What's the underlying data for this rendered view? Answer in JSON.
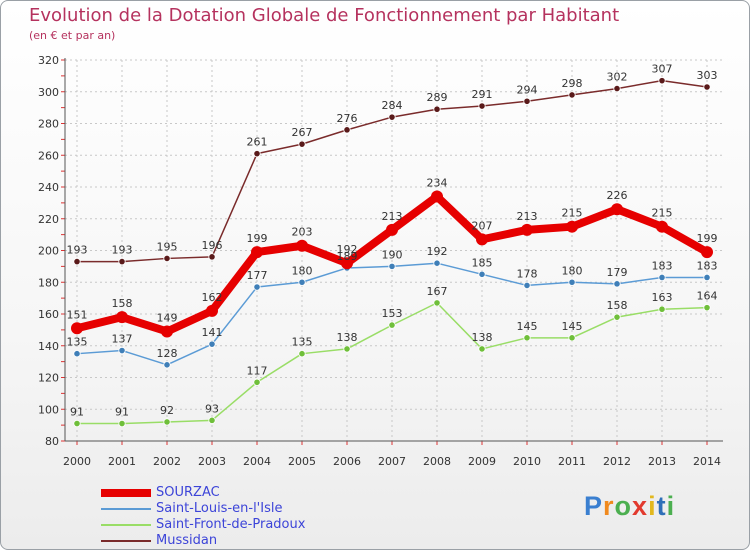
{
  "title": "Evolution de la Dotation Globale de Fonctionnement par Habitant",
  "subtitle": "(en € et par an)",
  "brand": "Proxiti",
  "chart_data": {
    "type": "line",
    "title": "Evolution de la Dotation Globale de Fonctionnement par Habitant",
    "ylabel": "(en € et par an)",
    "xlabel": "",
    "ylim": [
      80,
      320
    ],
    "y_ticks": [
      "80",
      "100",
      "120",
      "140",
      "160",
      "180",
      "200",
      "220",
      "240",
      "260",
      "280",
      "300",
      "320"
    ],
    "categories": [
      "2000",
      "2001",
      "2002",
      "2003",
      "2004",
      "2005",
      "2006",
      "2007",
      "2008",
      "2009",
      "2010",
      "2011",
      "2012",
      "2013",
      "2014"
    ],
    "grid": true,
    "series": [
      {
        "name": "SOURZAC",
        "color": "#e60000",
        "values": [
          151,
          158,
          149,
          162,
          199,
          203,
          192,
          213,
          234,
          207,
          213,
          215,
          226,
          215,
          199
        ]
      },
      {
        "name": "Saint-Louis-en-l'Isle",
        "color": "#5b9bd5",
        "values": [
          135,
          137,
          128,
          141,
          177,
          180,
          189,
          190,
          192,
          185,
          178,
          180,
          179,
          183,
          183
        ]
      },
      {
        "name": "Saint-Front-de-Pradoux",
        "color": "#99dd66",
        "values": [
          91,
          91,
          92,
          93,
          117,
          135,
          138,
          153,
          167,
          138,
          145,
          145,
          158,
          163,
          164
        ]
      },
      {
        "name": "Mussidan",
        "color": "#7a2b2b",
        "values": [
          193,
          193,
          195,
          196,
          261,
          267,
          276,
          284,
          289,
          291,
          294,
          298,
          302,
          307,
          303
        ]
      }
    ]
  }
}
